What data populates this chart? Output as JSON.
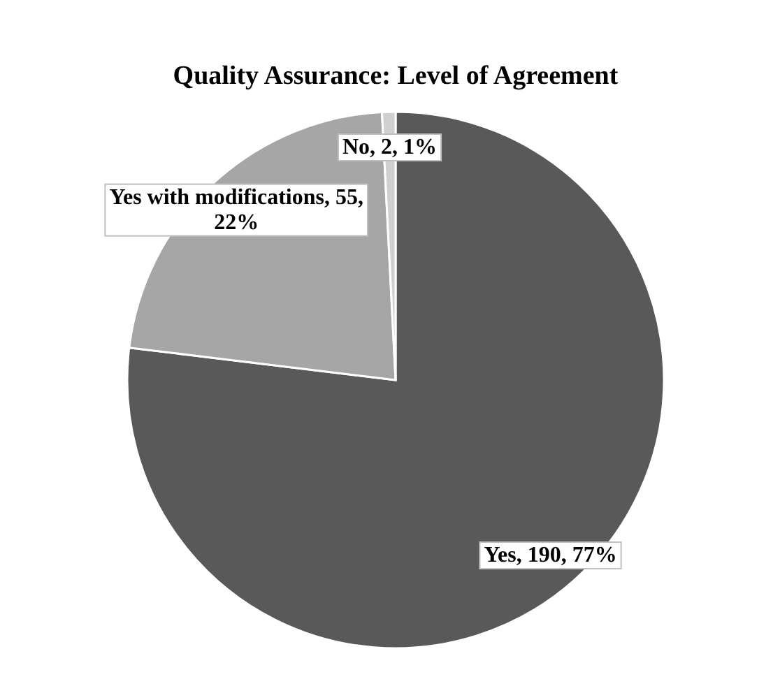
{
  "chart_data": {
    "type": "pie",
    "title": "Quality Assurance: Level of Agreement",
    "categories": [
      "Yes",
      "Yes with modifications",
      "No"
    ],
    "values": [
      190,
      55,
      2
    ],
    "value_labels": [
      "190, 77%",
      "55, 22%",
      "2, 1%"
    ],
    "colors": [
      "#595959",
      "#a6a6a6",
      "#d0d0d0"
    ],
    "legend": false
  }
}
